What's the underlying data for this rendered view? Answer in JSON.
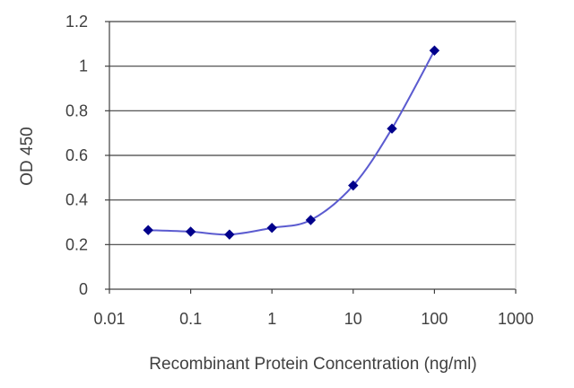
{
  "chart_data": {
    "type": "line",
    "xscale": "log",
    "xlabel": "Recombinant Protein Concentration (ng/ml)",
    "ylabel": "OD 450",
    "xlim": [
      0.01,
      1000
    ],
    "ylim": [
      0,
      1.2
    ],
    "x_ticks": [
      "0.01",
      "0.1",
      "1",
      "10",
      "100",
      "1000"
    ],
    "y_ticks": [
      "0",
      "0.2",
      "0.4",
      "0.6",
      "0.8",
      "1",
      "1.2"
    ],
    "grid": "horizontal",
    "legend": "none",
    "series": [
      {
        "x": [
          0.03,
          0.1,
          0.3,
          1,
          3,
          10,
          30,
          100
        ],
        "y": [
          0.265,
          0.258,
          0.245,
          0.275,
          0.31,
          0.465,
          0.72,
          1.07
        ],
        "color": "#00008b",
        "line_color": "#5b5bd0",
        "marker": "diamond"
      }
    ]
  }
}
